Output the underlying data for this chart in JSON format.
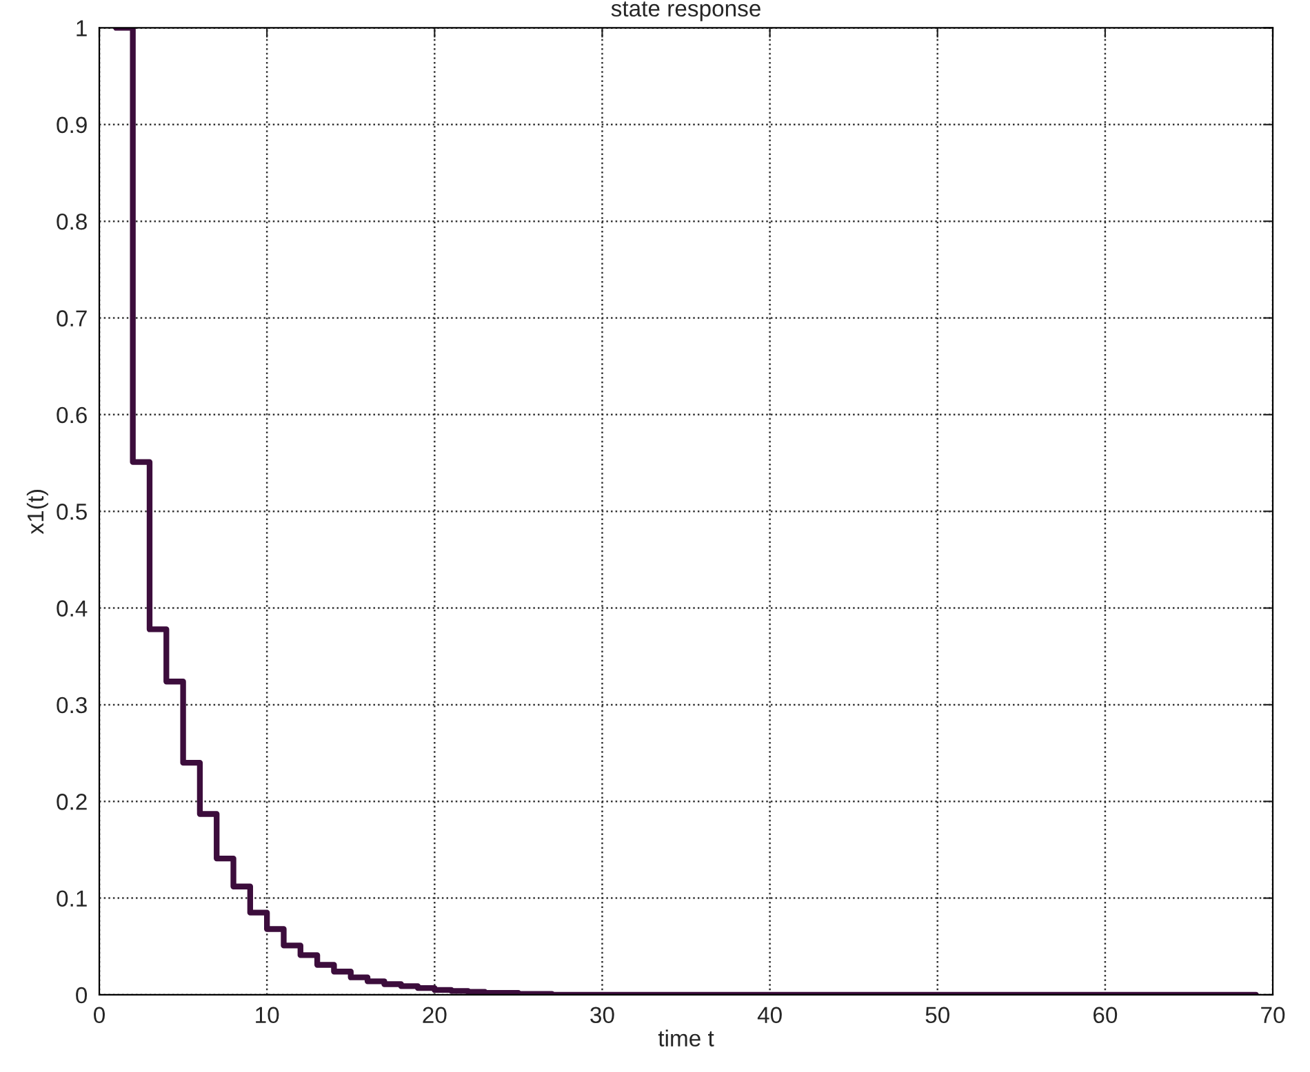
{
  "chart_data": {
    "type": "step",
    "title": "state response",
    "xlabel": "time t",
    "ylabel": "x1(t)",
    "x": [
      1,
      2,
      3,
      4,
      5,
      6,
      7,
      8,
      9,
      10,
      11,
      12,
      13,
      14,
      15,
      16,
      17,
      18,
      19,
      20,
      21,
      22,
      23,
      24,
      25,
      26,
      27,
      28,
      29,
      30,
      31,
      32,
      33,
      34,
      35,
      36,
      37,
      38,
      39,
      40,
      41,
      42,
      43,
      44,
      45,
      46,
      47,
      48,
      49,
      50,
      51,
      52,
      53,
      54,
      55,
      56,
      57,
      58,
      59,
      60,
      61,
      62,
      63,
      64,
      65,
      66,
      67,
      68,
      69
    ],
    "series": [
      {
        "color": "#3c0d3c",
        "values": [
          1,
          0.551,
          0.378,
          0.324,
          0.24,
          0.187,
          0.141,
          0.112,
          0.085,
          0.068,
          0.051,
          0.041,
          0.031,
          0.024,
          0.018,
          0.014,
          0.011,
          0.009,
          0.007,
          0.005,
          0.004,
          0.003,
          0.002,
          0.002,
          0.001,
          0.001,
          0,
          0,
          0,
          0,
          0,
          0,
          0,
          0,
          0,
          0,
          0,
          0,
          0,
          0,
          0,
          0,
          0,
          0,
          0,
          0,
          0,
          0,
          0,
          0,
          0,
          0,
          0,
          0,
          0,
          0,
          0,
          0,
          0,
          0,
          0,
          0,
          0,
          0,
          0,
          0,
          0,
          0,
          0
        ]
      }
    ],
    "xlim": [
      0,
      70
    ],
    "xticks": [
      0,
      10,
      20,
      30,
      40,
      50,
      60,
      70
    ],
    "ylim": [
      0,
      1
    ],
    "yticks": [
      0,
      0.1,
      0.2,
      0.3,
      0.4,
      0.5,
      0.6,
      0.7,
      0.8,
      0.9,
      1
    ],
    "grid": true,
    "line_style": "solid",
    "marker": "none"
  }
}
